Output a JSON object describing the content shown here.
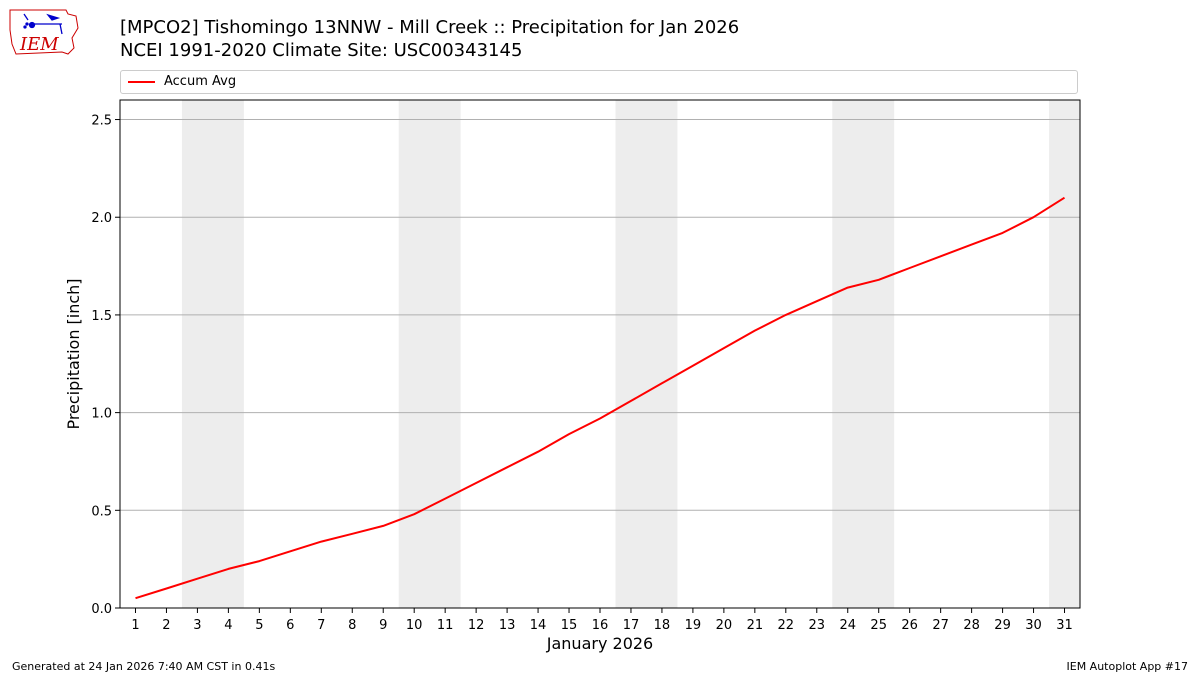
{
  "header": {
    "title_line1": "[MPCO2] Tishomingo 13NNW - Mill Creek :: Precipitation for Jan 2026",
    "title_line2": "NCEI 1991-2020 Climate Site: USC00343145",
    "logo_text": "IEM"
  },
  "legend": {
    "label": "Accum Avg"
  },
  "footer": {
    "left": "Generated at 24 Jan 2026 7:40 AM CST in 0.41s",
    "right": "IEM Autoplot App #17"
  },
  "colors": {
    "series": "#ff0000",
    "weekend_shade": "#ededed",
    "grid": "#b0b0b0",
    "logo": "#cc0000",
    "logo_symbols": "#0000cc"
  },
  "chart_data": {
    "type": "line",
    "xlabel": "January 2026",
    "ylabel": "Precipitation [inch]",
    "ylim": [
      0,
      2.6
    ],
    "xlim": [
      0.5,
      31.5
    ],
    "yticks": [
      0.0,
      0.5,
      1.0,
      1.5,
      2.0,
      2.5
    ],
    "ytick_labels": [
      "0.0",
      "0.5",
      "1.0",
      "1.5",
      "2.0",
      "2.5"
    ],
    "xticks": [
      1,
      2,
      3,
      4,
      5,
      6,
      7,
      8,
      9,
      10,
      11,
      12,
      13,
      14,
      15,
      16,
      17,
      18,
      19,
      20,
      21,
      22,
      23,
      24,
      25,
      26,
      27,
      28,
      29,
      30,
      31
    ],
    "grid": "horizontal",
    "legend_position": "top",
    "weekend_bands": [
      [
        2.5,
        4.5
      ],
      [
        9.5,
        11.5
      ],
      [
        16.5,
        18.5
      ],
      [
        23.5,
        25.5
      ],
      [
        30.5,
        31.5
      ]
    ],
    "series": [
      {
        "name": "Accum Avg",
        "x": [
          1,
          2,
          3,
          4,
          5,
          6,
          7,
          8,
          9,
          10,
          11,
          12,
          13,
          14,
          15,
          16,
          17,
          18,
          19,
          20,
          21,
          22,
          23,
          24,
          25,
          26,
          27,
          28,
          29,
          30,
          31
        ],
        "values": [
          0.05,
          0.1,
          0.15,
          0.2,
          0.24,
          0.29,
          0.34,
          0.38,
          0.42,
          0.48,
          0.56,
          0.64,
          0.72,
          0.8,
          0.89,
          0.97,
          1.06,
          1.15,
          1.24,
          1.33,
          1.42,
          1.5,
          1.57,
          1.64,
          1.68,
          1.74,
          1.8,
          1.86,
          1.92,
          2.0,
          2.1
        ]
      }
    ]
  }
}
